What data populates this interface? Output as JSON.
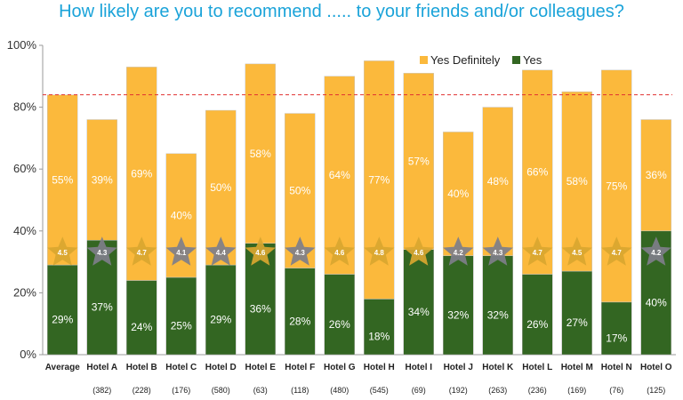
{
  "chart_data": {
    "type": "bar",
    "stacked": true,
    "title": "How likely are you to recommend ..... to your friends and/or colleagues?",
    "categories": [
      "Average",
      "Hotel A",
      "Hotel B",
      "Hotel C",
      "Hotel D",
      "Hotel E",
      "Hotel F",
      "Hotel G",
      "Hotel H",
      "Hotel I",
      "Hotel J",
      "Hotel K",
      "Hotel L",
      "Hotel M",
      "Hotel N",
      "Hotel O"
    ],
    "sample_sizes": [
      "",
      "(382)",
      "(228)",
      "(176)",
      "(580)",
      "(63)",
      "(118)",
      "(480)",
      "(545)",
      "(69)",
      "(192)",
      "(263)",
      "(236)",
      "(169)",
      "(76)",
      "(125)"
    ],
    "series": [
      {
        "name": "Yes",
        "color": "#336622",
        "values": [
          29,
          37,
          24,
          25,
          29,
          36,
          28,
          26,
          18,
          34,
          32,
          32,
          26,
          27,
          17,
          40
        ]
      },
      {
        "name": "Yes Definitely",
        "color": "#fbb93c",
        "values": [
          55,
          39,
          69,
          40,
          50,
          58,
          50,
          64,
          77,
          57,
          40,
          48,
          66,
          58,
          75,
          36
        ]
      }
    ],
    "scores": [
      "4.5",
      "4.3",
      "4.7",
      "4.1",
      "4.4",
      "4.6",
      "4.3",
      "4.6",
      "4.8",
      "4.6",
      "4.2",
      "4.3",
      "4.7",
      "4.5",
      "4.7",
      "4.2"
    ],
    "reference_line": {
      "value": 84,
      "style": "dashed",
      "color": "#e03030"
    },
    "ylim": [
      0,
      100
    ],
    "yticks": [
      0,
      20,
      40,
      60,
      80,
      100
    ],
    "ytick_labels": [
      "0%",
      "20%",
      "40%",
      "60%",
      "80%",
      "100%"
    ],
    "legend_position": "top-right",
    "grid": false,
    "star_color_gold": "#d9a630",
    "star_color_gray": "#7e7e8a"
  }
}
